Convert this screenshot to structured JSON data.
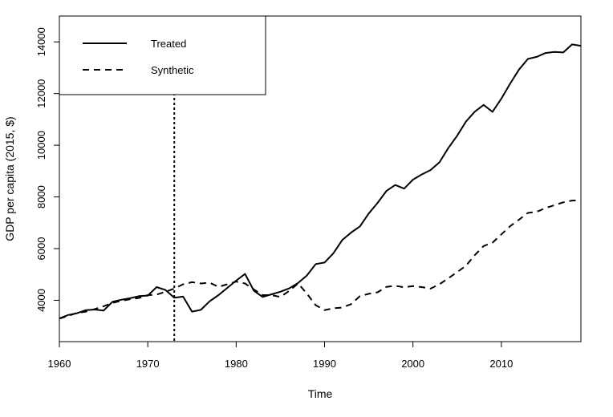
{
  "chart_data": {
    "type": "line",
    "title": "",
    "xlabel": "Time",
    "ylabel": "GDP per capita (2015, $)",
    "xlim": [
      1960,
      2019
    ],
    "ylim": [
      2400,
      15000
    ],
    "x_ticks": [
      1960,
      1970,
      1980,
      1990,
      2000,
      2010
    ],
    "y_ticks": [
      4000,
      6000,
      8000,
      10000,
      12000,
      14000
    ],
    "grid": false,
    "legend_position": "top-left",
    "vline": {
      "x": 1973,
      "style": "dotted"
    },
    "x": [
      1960,
      1961,
      1962,
      1963,
      1964,
      1965,
      1966,
      1967,
      1968,
      1969,
      1970,
      1971,
      1972,
      1973,
      1974,
      1975,
      1976,
      1977,
      1978,
      1979,
      1980,
      1981,
      1982,
      1983,
      1984,
      1985,
      1986,
      1987,
      1988,
      1989,
      1990,
      1991,
      1992,
      1993,
      1994,
      1995,
      1996,
      1997,
      1998,
      1999,
      2000,
      2001,
      2002,
      2003,
      2004,
      2005,
      2006,
      2007,
      2008,
      2009,
      2010,
      2011,
      2012,
      2013,
      2014,
      2015,
      2016,
      2017,
      2018,
      2019
    ],
    "series": [
      {
        "name": "Treated",
        "line_style": "solid",
        "values": [
          3300,
          3430,
          3500,
          3620,
          3640,
          3600,
          3940,
          4020,
          4080,
          4160,
          4180,
          4510,
          4400,
          4100,
          4140,
          3560,
          3630,
          3960,
          4200,
          4480,
          4760,
          5020,
          4370,
          4130,
          4230,
          4330,
          4460,
          4670,
          4960,
          5400,
          5460,
          5820,
          6330,
          6620,
          6860,
          7360,
          7770,
          8230,
          8460,
          8320,
          8670,
          8870,
          9040,
          9340,
          9890,
          10370,
          10920,
          11300,
          11560,
          11290,
          11800,
          12390,
          12930,
          13340,
          13420,
          13570,
          13610,
          13590,
          13900,
          13850
        ]
      },
      {
        "name": "Synthetic",
        "line_style": "dashed",
        "values": [
          3290,
          3400,
          3510,
          3560,
          3660,
          3770,
          3900,
          3980,
          4040,
          4090,
          4200,
          4220,
          4330,
          4450,
          4620,
          4700,
          4650,
          4680,
          4520,
          4620,
          4720,
          4650,
          4420,
          4200,
          4200,
          4130,
          4360,
          4650,
          4260,
          3810,
          3620,
          3690,
          3720,
          3850,
          4160,
          4250,
          4310,
          4520,
          4560,
          4500,
          4550,
          4510,
          4450,
          4620,
          4850,
          5090,
          5340,
          5750,
          6100,
          6230,
          6550,
          6870,
          7120,
          7380,
          7420,
          7570,
          7680,
          7790,
          7860,
          7870
        ]
      }
    ]
  }
}
